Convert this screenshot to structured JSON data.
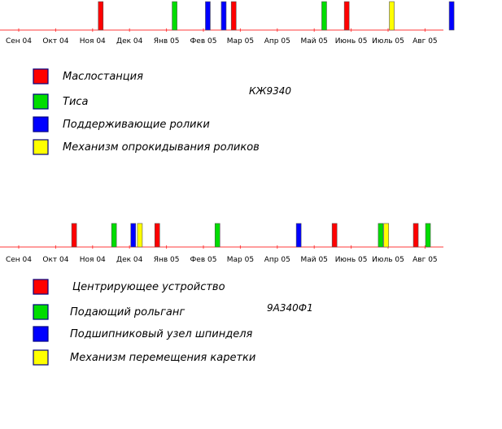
{
  "chart_data": [
    {
      "type": "timeline",
      "code": "КЖ9340",
      "ticks": [
        "Сен 04",
        "Окт 04",
        "Ноя 04",
        "Дек 04",
        "Янв 05",
        "Фев 05",
        "Мар 05",
        "Апр 05",
        "Май 05",
        "Июнь 05",
        "Июль 05",
        "Авг 05"
      ],
      "legend": [
        {
          "label": "Маслостанция",
          "color": "#ff0000"
        },
        {
          "label": "Тиса",
          "color": "#00dd00"
        },
        {
          "label": "Поддерживающие ролики",
          "color": "#0000ff"
        },
        {
          "label": "Механизм опрокидывания роликов",
          "color": "#ffff00"
        }
      ],
      "events": [
        {
          "month": 2.22,
          "series": 0
        },
        {
          "month": 4.22,
          "series": 1
        },
        {
          "month": 5.12,
          "series": 2
        },
        {
          "month": 5.55,
          "series": 2
        },
        {
          "month": 5.82,
          "series": 0
        },
        {
          "month": 8.27,
          "series": 1
        },
        {
          "month": 8.88,
          "series": 0
        },
        {
          "month": 10.1,
          "series": 3
        },
        {
          "month": 11.72,
          "series": 2
        }
      ]
    },
    {
      "type": "timeline",
      "code": "9А340Ф1",
      "ticks": [
        "Сен 04",
        "Окт 04",
        "Ноя 04",
        "Дек 04",
        "Янв 05",
        "Фев 05",
        "Мар 05",
        "Апр 05",
        "Май 05",
        "Июнь 05",
        "Июль 05",
        "Авг 05"
      ],
      "legend": [
        {
          "label": "Центрирующее устройство",
          "color": "#ff0000"
        },
        {
          "label": "Подающий рольганг",
          "color": "#00dd00"
        },
        {
          "label": "Подшипниковый узел шпинделя",
          "color": "#0000ff"
        },
        {
          "label": "Механизм перемещения каретки",
          "color": "#ffff00"
        }
      ],
      "events": [
        {
          "month": 1.5,
          "series": 0
        },
        {
          "month": 2.58,
          "series": 1
        },
        {
          "month": 3.1,
          "series": 2
        },
        {
          "month": 3.28,
          "series": 3
        },
        {
          "month": 3.75,
          "series": 0
        },
        {
          "month": 5.38,
          "series": 1
        },
        {
          "month": 7.58,
          "series": 2
        },
        {
          "month": 8.55,
          "series": 0
        },
        {
          "month": 9.8,
          "series": 1
        },
        {
          "month": 9.95,
          "series": 3
        },
        {
          "month": 10.75,
          "series": 0
        },
        {
          "month": 11.08,
          "series": 1
        }
      ]
    }
  ]
}
